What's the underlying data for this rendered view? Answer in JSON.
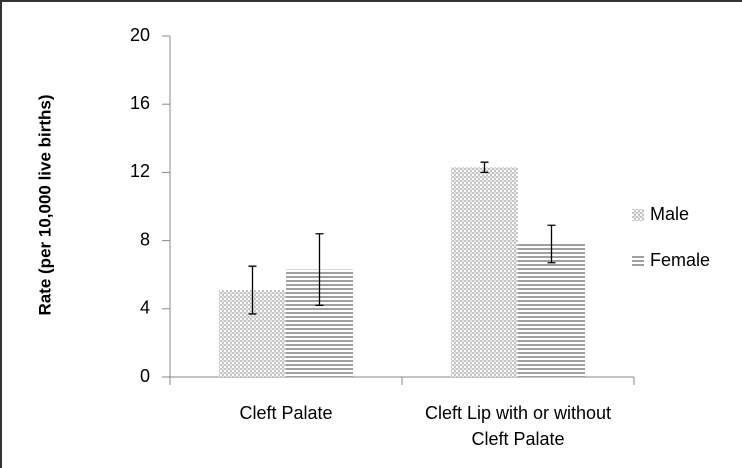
{
  "chart_data": {
    "type": "bar",
    "y_label": "Rate (per 10,000 live births)",
    "categories": [
      "Cleft Palate",
      "Cleft Lip with or without Cleft Palate"
    ],
    "series": [
      {
        "name": "Male",
        "color": "#c4c4c4",
        "values": [
          5.1,
          12.3
        ],
        "errors": [
          1.4,
          0.3
        ]
      },
      {
        "name": "Female",
        "color": "#a0a0a0",
        "values": [
          6.3,
          7.8
        ],
        "errors": [
          2.1,
          1.1
        ]
      }
    ],
    "ylim": [
      0,
      20
    ],
    "yticks": [
      0,
      4,
      8,
      12,
      16,
      20
    ],
    "legend": "right"
  }
}
